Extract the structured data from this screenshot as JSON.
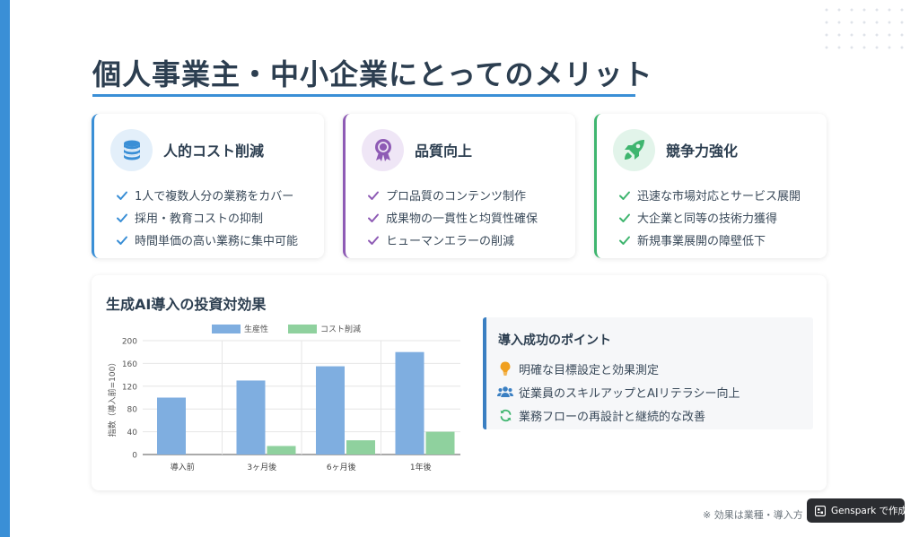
{
  "page": {
    "title": "個人事業主・中小企業にとってのメリット",
    "footnote": "※ 効果は業種・導入方",
    "badge_label": "Genspark で作成"
  },
  "cards": [
    {
      "title": "人的コスト削減",
      "icon": "database-coins-icon",
      "accent": "#3a8fd6",
      "items": [
        "1人で複数人分の業務をカバー",
        "採用・教育コストの抑制",
        "時間単価の高い業務に集中可能"
      ]
    },
    {
      "title": "品質向上",
      "icon": "award-medal-icon",
      "accent": "#8e5bb5",
      "items": [
        "プロ品質のコンテンツ制作",
        "成果物の一貫性と均質性確保",
        "ヒューマンエラーの削減"
      ]
    },
    {
      "title": "競争力強化",
      "icon": "rocket-icon",
      "accent": "#3fb56f",
      "items": [
        "迅速な市場対応とサービス展開",
        "大企業と同等の技術力獲得",
        "新規事業展開の障壁低下"
      ]
    }
  ],
  "roi": {
    "title": "生成AI導入の投資対効果"
  },
  "chart_data": {
    "type": "bar",
    "categories": [
      "導入前",
      "3ヶ月後",
      "6ヶ月後",
      "1年後"
    ],
    "series": [
      {
        "name": "生産性",
        "values": [
          100,
          130,
          155,
          180
        ],
        "color": "#7faee0"
      },
      {
        "name": "コスト削減",
        "values": [
          0,
          15,
          25,
          40
        ],
        "color": "#8fd19e"
      }
    ],
    "ylabel": "指数（導入前=100）",
    "ylim": [
      0,
      200
    ],
    "yticks": [
      0,
      40,
      80,
      120,
      160,
      200
    ],
    "legend": "top",
    "grid": true
  },
  "points": {
    "title": "導入成功のポイント",
    "items": [
      {
        "text": "明確な目標設定と効果測定",
        "icon": "lightbulb-icon",
        "color": "#f0a020"
      },
      {
        "text": "従業員のスキルアップとAIリテラシー向上",
        "icon": "users-icon",
        "color": "#3a7fc2"
      },
      {
        "text": "業務フローの再設計と継続的な改善",
        "icon": "sync-icon",
        "color": "#3fb56f"
      }
    ]
  }
}
